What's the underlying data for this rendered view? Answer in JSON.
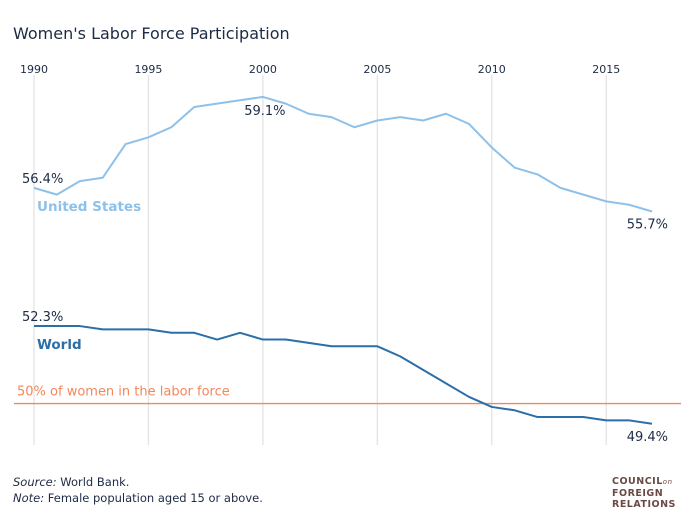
{
  "chart_data": {
    "type": "line",
    "title": "Women's Labor Force Participation",
    "x": [
      1990,
      1991,
      1992,
      1993,
      1994,
      1995,
      1996,
      1997,
      1998,
      1999,
      2000,
      2001,
      2002,
      2003,
      2004,
      2005,
      2006,
      2007,
      2008,
      2009,
      2010,
      2011,
      2012,
      2013,
      2014,
      2015,
      2016,
      2017
    ],
    "xticks": [
      "1990",
      "1995",
      "2000",
      "2005",
      "2010",
      "2015"
    ],
    "xlim": [
      1990,
      2017
    ],
    "ylim": [
      48.8,
      59.75
    ],
    "grid": "vertical at x ticks",
    "series": [
      {
        "name": "United States",
        "color": "#8ec1ea",
        "values": [
          56.4,
          56.2,
          56.6,
          56.7,
          57.7,
          57.9,
          58.2,
          58.8,
          58.9,
          59.0,
          59.1,
          58.9,
          58.6,
          58.5,
          58.2,
          58.4,
          58.5,
          58.4,
          58.6,
          58.3,
          57.6,
          57.0,
          56.8,
          56.4,
          56.2,
          56.0,
          55.9,
          55.7
        ]
      },
      {
        "name": "World",
        "color": "#2b6ea8",
        "values": [
          52.3,
          52.3,
          52.3,
          52.2,
          52.2,
          52.2,
          52.1,
          52.1,
          51.9,
          52.1,
          51.9,
          51.9,
          51.8,
          51.7,
          51.7,
          51.7,
          51.4,
          51.0,
          50.6,
          50.2,
          49.9,
          49.8,
          49.6,
          49.6,
          49.6,
          49.5,
          49.5,
          49.4
        ]
      }
    ],
    "annotations": [
      {
        "text": "56.4%",
        "year": 1990,
        "series": "United States"
      },
      {
        "text": "59.1%",
        "year": 2000,
        "series": "United States"
      },
      {
        "text": "55.7%",
        "year": 2017,
        "series": "United States"
      },
      {
        "text": "52.3%",
        "year": 1990,
        "series": "World"
      },
      {
        "text": "49.4%",
        "year": 2017,
        "series": "World"
      }
    ],
    "reference_line": {
      "value": 50,
      "text": "50% of women in the labor force",
      "color": "#f4875a"
    }
  },
  "footer": {
    "source_label": "Source:",
    "source_text": " World Bank.",
    "note_label": "Note:",
    "note_text": " Female population aged 15 or above."
  },
  "logo": {
    "line1": "COUNCIL",
    "on": "on",
    "line2": "FOREIGN",
    "line3": "RELATIONS",
    "color": "#6b4a44"
  }
}
